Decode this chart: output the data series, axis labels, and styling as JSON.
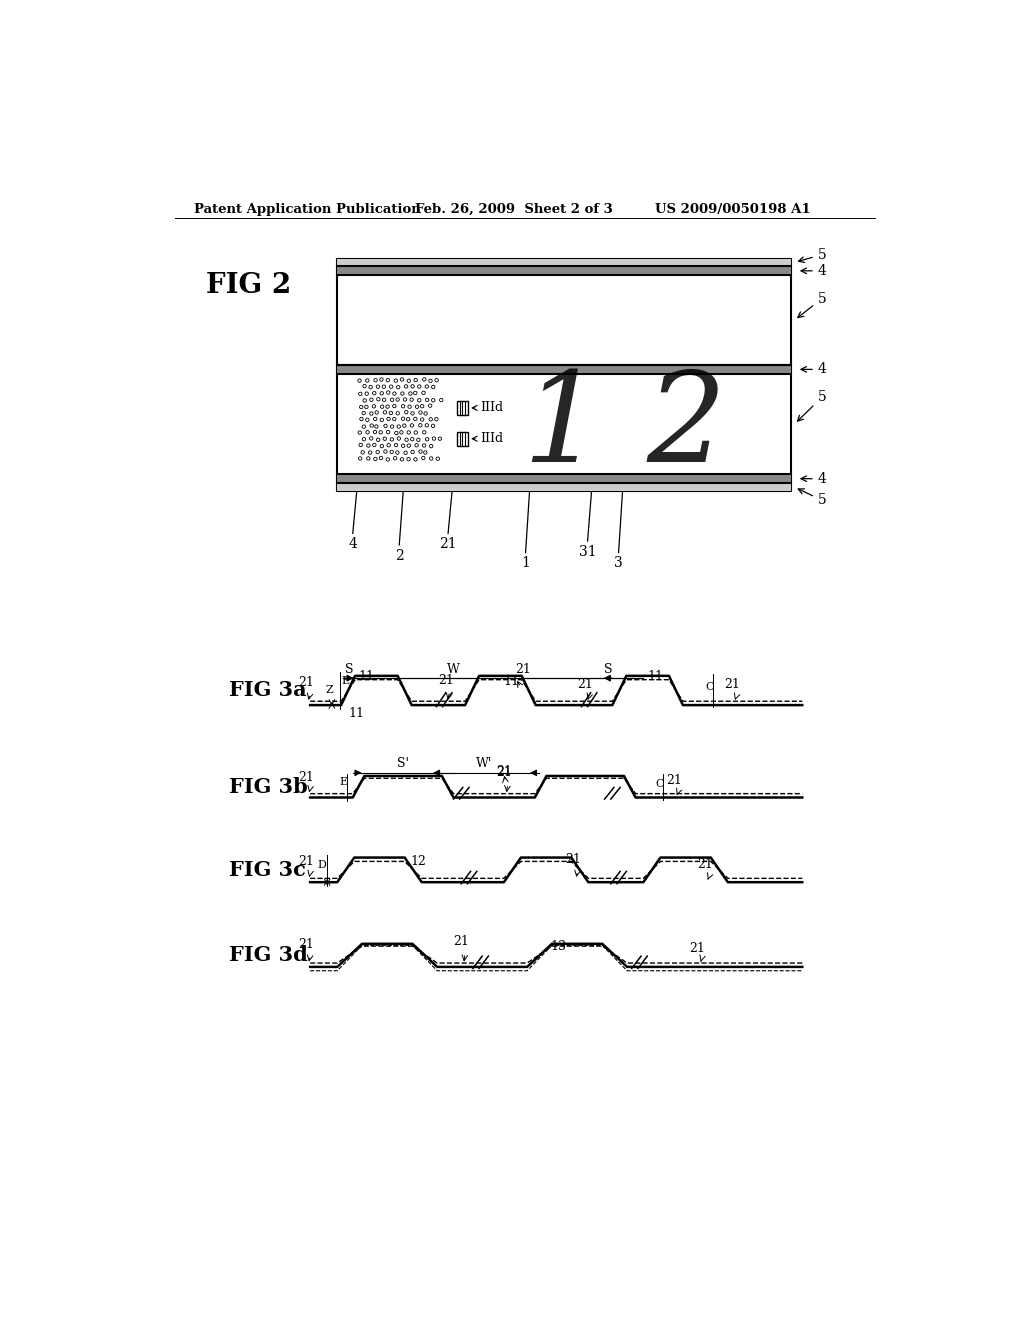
{
  "bg_color": "#ffffff",
  "header_left": "Patent Application Publication",
  "header_mid": "Feb. 26, 2009  Sheet 2 of 3",
  "header_right": "US 2009/0050198 A1"
}
